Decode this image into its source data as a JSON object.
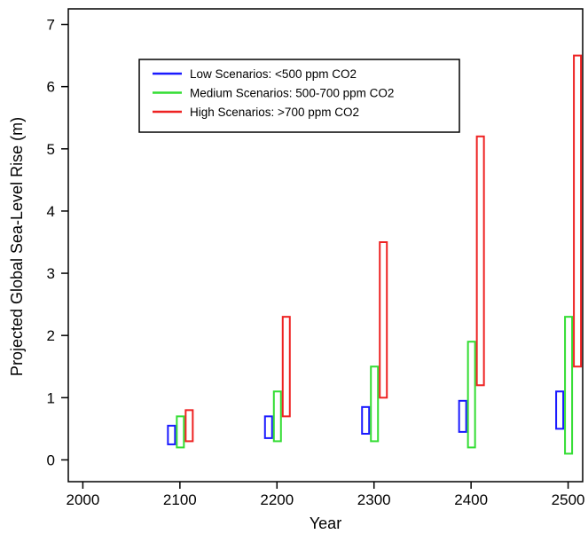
{
  "chart_data": {
    "type": "range-bar",
    "xlabel": "Year",
    "ylabel": "Projected Global Sea-Level Rise (m)",
    "xlim": [
      1985,
      2515
    ],
    "ylim": [
      -0.35,
      7.25
    ],
    "x_ticks": [
      "2000",
      "2100",
      "2200",
      "2300",
      "2400",
      "2500"
    ],
    "y_ticks": [
      "0",
      "1",
      "2",
      "3",
      "4",
      "5",
      "6",
      "7"
    ],
    "grid": false,
    "legend_position": "top-left",
    "colors": {
      "low": "#1a1aff",
      "medium": "#33dd33",
      "high": "#ee2222"
    },
    "series": [
      {
        "key": "low",
        "name": "Low Scenarios: <500 ppm CO2",
        "x": [
          2100,
          2200,
          2300,
          2400,
          2500
        ],
        "low": [
          0.25,
          0.35,
          0.42,
          0.45,
          0.5
        ],
        "high": [
          0.55,
          0.7,
          0.85,
          0.95,
          1.1
        ]
      },
      {
        "key": "medium",
        "name": "Medium Scenarios: 500-700 ppm CO2",
        "x": [
          2100,
          2200,
          2300,
          2400,
          2500
        ],
        "low": [
          0.2,
          0.3,
          0.3,
          0.2,
          0.1
        ],
        "high": [
          0.7,
          1.1,
          1.5,
          1.9,
          2.3
        ]
      },
      {
        "key": "high",
        "name": "High Scenarios: >700 ppm CO2",
        "x": [
          2100,
          2200,
          2300,
          2400,
          2500
        ],
        "low": [
          0.3,
          0.7,
          1.0,
          1.2,
          1.5
        ],
        "high": [
          0.8,
          2.3,
          3.5,
          5.2,
          6.5
        ]
      }
    ]
  }
}
